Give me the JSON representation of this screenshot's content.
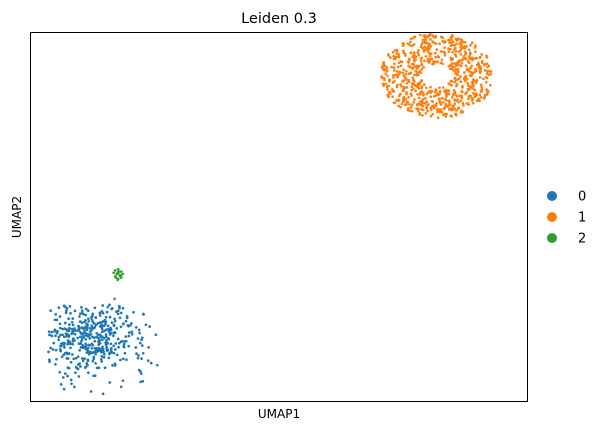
{
  "chart_data": {
    "type": "scatter",
    "title": "Leiden 0.3",
    "xlabel": "UMAP1",
    "ylabel": "UMAP2",
    "ticks_visible": false,
    "grid": false,
    "legend_position": "right",
    "legend_title": "",
    "series": [
      {
        "name": "0",
        "color": "#1f77b4",
        "n_points": 450,
        "center": [
          -3.5,
          -3.8
        ],
        "points": [
          [
            -4.4,
            -2.5
          ],
          [
            -4.3,
            -2.6
          ],
          [
            -2.8,
            -2.6
          ],
          [
            -2.6,
            -2.7
          ],
          [
            -3.2,
            -2.9
          ],
          [
            -2.3,
            -3.0
          ],
          [
            -4.7,
            -3.5
          ],
          [
            -4.8,
            -3.6
          ],
          [
            -1.6,
            -4.8
          ],
          [
            -1.5,
            -4.9
          ],
          [
            -4.5,
            -5.8
          ],
          [
            -4.4,
            -6.0
          ],
          [
            -3.5,
            -6.1
          ],
          [
            -3.1,
            -6.2
          ],
          [
            -2.5,
            -5.9
          ],
          [
            -1.9,
            -5.2
          ],
          [
            -3.6,
            -4.4
          ],
          [
            -3.0,
            -3.8
          ],
          [
            -2.4,
            -4.1
          ],
          [
            -4.0,
            -4.7
          ],
          [
            -2.0,
            -3.4
          ],
          [
            -3.8,
            -3.2
          ],
          [
            -2.7,
            -5.0
          ],
          [
            -4.1,
            -3.9
          ]
        ]
      },
      {
        "name": "1",
        "color": "#ff7f0e",
        "n_points": 700,
        "center": [
          8.0,
          7.2
        ],
        "points": [
          [
            7.3,
            7.4
          ],
          [
            7.5,
            7.0
          ],
          [
            7.9,
            7.7
          ],
          [
            8.4,
            7.6
          ],
          [
            8.6,
            7.1
          ],
          [
            8.3,
            6.6
          ],
          [
            7.8,
            6.5
          ],
          [
            7.4,
            6.8
          ],
          [
            6.9,
            7.2
          ],
          [
            7.2,
            8.0
          ],
          [
            8.0,
            8.3
          ],
          [
            8.8,
            8.1
          ],
          [
            9.2,
            7.3
          ],
          [
            9.0,
            6.5
          ],
          [
            8.3,
            6.0
          ],
          [
            7.5,
            6.1
          ],
          [
            6.9,
            6.6
          ],
          [
            7.9,
            8.6
          ],
          [
            8.6,
            5.8
          ],
          [
            6.8,
            7.8
          ]
        ]
      },
      {
        "name": "2",
        "color": "#2ca02c",
        "n_points": 18,
        "center": [
          -2.6,
          -1.2
        ],
        "points": [
          [
            -2.7,
            -1.0
          ],
          [
            -2.6,
            -0.95
          ],
          [
            -2.5,
            -1.05
          ],
          [
            -2.65,
            -1.15
          ],
          [
            -2.55,
            -1.2
          ],
          [
            -2.7,
            -1.25
          ],
          [
            -2.5,
            -1.3
          ],
          [
            -2.6,
            -1.35
          ],
          [
            -2.75,
            -1.1
          ],
          [
            -2.45,
            -1.15
          ],
          [
            -2.58,
            -1.05
          ],
          [
            -2.68,
            -1.3
          ],
          [
            -2.52,
            -1.22
          ],
          [
            -2.62,
            -1.4
          ],
          [
            -2.72,
            -2.2
          ]
        ]
      }
    ],
    "xlim": [
      -5.5,
      11.0
    ],
    "ylim": [
      -6.5,
      9.0
    ]
  }
}
